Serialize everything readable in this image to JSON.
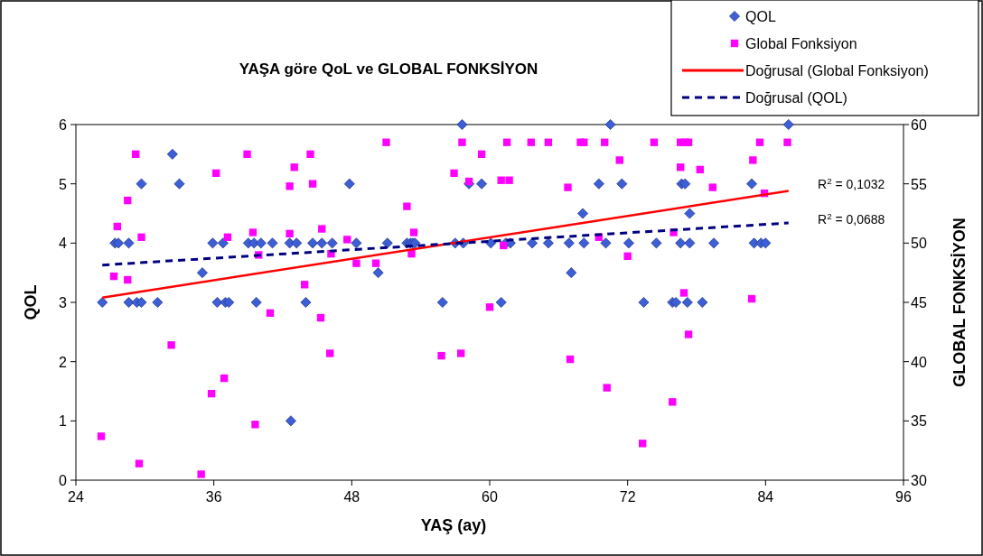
{
  "chart_data": {
    "type": "scatter",
    "title": "YAŞA göre QoL ve GLOBAL FONKSİYON",
    "xlabel": "YAŞ (ay)",
    "ylabel": "QOL",
    "y2label": "GLOBAL FONKSİYON",
    "xlim": [
      24,
      96
    ],
    "xticks": [
      24,
      36,
      48,
      60,
      72,
      84,
      96
    ],
    "ylim": [
      0,
      6
    ],
    "yticks": [
      0,
      1,
      2,
      3,
      4,
      5,
      6
    ],
    "y2lim": [
      30,
      60
    ],
    "y2ticks": [
      30,
      35,
      40,
      45,
      50,
      55,
      60
    ],
    "grid": false,
    "legend": "top right",
    "series": [
      {
        "name": "QOL",
        "type": "scatter",
        "marker": "diamond",
        "color": "#3c5fd6",
        "x": [
          26.3,
          27.4,
          27.7,
          28.6,
          28.6,
          29.3,
          29.7,
          29.7,
          31.1,
          32.4,
          33.0,
          35.0,
          35.9,
          36.8,
          36.3,
          37.0,
          37.3,
          39.0,
          39.5,
          40.1,
          39.7,
          41.1,
          42.6,
          43.2,
          42.7,
          44.0,
          44.6,
          45.4,
          46.3,
          47.8,
          48.4,
          50.3,
          51.1,
          52.8,
          53.1,
          53.3,
          53.5,
          55.9,
          57.0,
          57.7,
          57.6,
          58.2,
          59.3,
          60.1,
          61.0,
          61.4,
          61.8,
          63.7,
          65.1,
          66.9,
          67.1,
          68.1,
          68.2,
          69.5,
          70.1,
          70.5,
          71.5,
          72.1,
          73.4,
          74.5,
          75.9,
          76.2,
          76.6,
          76.7,
          77.0,
          77.2,
          77.4,
          77.4,
          78.5,
          79.5,
          82.8,
          83.0,
          83.6,
          84.0,
          86.0
        ],
        "values": [
          3,
          4,
          4,
          4,
          3,
          3,
          3,
          5,
          3,
          5.5,
          5,
          3.5,
          4,
          4,
          3,
          3,
          3,
          4,
          4,
          4,
          3,
          4,
          4,
          4,
          1,
          3,
          4,
          4,
          4,
          5,
          4,
          3.5,
          4,
          4,
          4,
          4,
          4,
          3,
          4,
          4,
          6,
          5,
          5,
          4,
          3,
          4,
          4,
          4,
          4,
          4,
          3.5,
          4.5,
          4,
          5,
          4,
          6,
          5,
          4,
          3,
          4,
          3,
          3,
          4,
          5,
          5,
          3,
          4.5,
          4,
          3,
          4,
          5,
          4,
          4,
          4,
          6
        ]
      },
      {
        "name": "Global Fonksiyon",
        "type": "scatter",
        "marker": "square",
        "axis": "y2",
        "color": "#ff00ff",
        "x": [
          26.2,
          27.3,
          27.6,
          28.5,
          28.5,
          29.2,
          29.7,
          29.5,
          32.3,
          34.9,
          35.8,
          36.2,
          36.9,
          37.2,
          38.9,
          39.4,
          39.6,
          39.9,
          40.9,
          42.6,
          42.6,
          43.0,
          43.9,
          44.4,
          44.6,
          45.3,
          45.4,
          46.1,
          46.2,
          47.6,
          48.4,
          50.1,
          51.0,
          52.8,
          53.4,
          53.2,
          55.8,
          56.9,
          57.5,
          57.6,
          58.2,
          59.3,
          60.0,
          61.0,
          61.2,
          61.7,
          61.5,
          63.6,
          65.1,
          66.8,
          67.0,
          67.9,
          68.2,
          69.5,
          70.0,
          70.2,
          71.3,
          72.0,
          73.3,
          74.3,
          75.9,
          76.0,
          76.6,
          76.6,
          77.0,
          77.3,
          76.9,
          77.3,
          78.3,
          79.4,
          82.8,
          82.9,
          83.5,
          83.9,
          85.9
        ],
        "values": [
          33.7,
          47.2,
          51.4,
          53.6,
          46.9,
          57.5,
          50.5,
          31.4,
          41.4,
          30.5,
          37.3,
          55.9,
          38.6,
          50.5,
          57.5,
          50.9,
          34.7,
          49.0,
          44.1,
          54.8,
          50.8,
          56.4,
          46.5,
          57.5,
          55.0,
          43.7,
          51.2,
          40.7,
          49.1,
          50.3,
          48.3,
          48.3,
          58.5,
          53.1,
          50.9,
          49.1,
          40.5,
          55.9,
          40.7,
          58.5,
          55.2,
          57.5,
          44.6,
          55.3,
          49.8,
          55.3,
          58.5,
          58.5,
          58.5,
          54.7,
          40.2,
          58.5,
          58.5,
          50.5,
          58.5,
          37.8,
          57.0,
          48.9,
          33.1,
          58.5,
          36.6,
          50.9,
          56.4,
          58.5,
          58.5,
          58.5,
          45.8,
          42.3,
          56.2,
          54.7,
          45.3,
          57.0,
          58.5,
          54.2,
          58.5
        ]
      },
      {
        "name": "Doğrusal (Global Fonksiyon)",
        "type": "line",
        "axis": "y2",
        "marker": "none",
        "line_style": "solid",
        "color": "#ff0000",
        "x": [
          26.3,
          86.0
        ],
        "values": [
          45.4,
          54.4
        ]
      },
      {
        "name": "Doğrusal (QOL)",
        "type": "line",
        "marker": "none",
        "line_style": "dashed",
        "color": "#000080",
        "x": [
          26.3,
          86.0
        ],
        "values": [
          3.63,
          4.34
        ]
      }
    ],
    "annotations": [
      "R$^{2}$ = 0,1032",
      "R$^{2}$ = 0,0688"
    ]
  }
}
